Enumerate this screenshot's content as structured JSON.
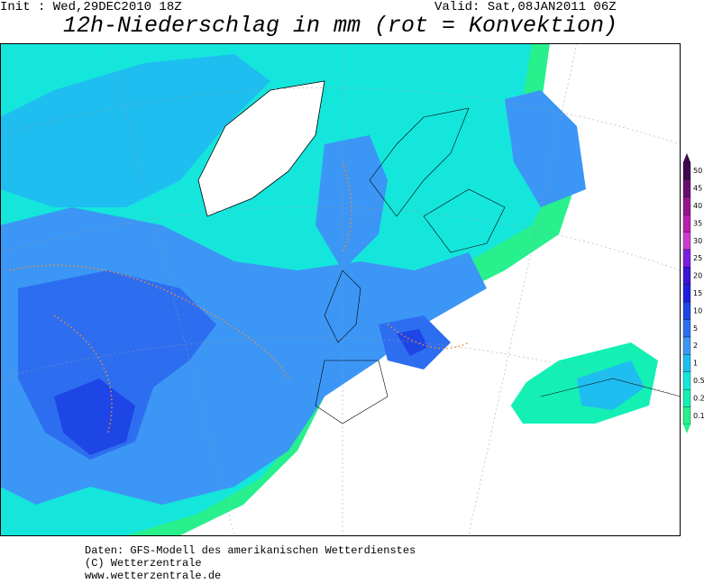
{
  "header": {
    "init": "Init : Wed,29DEC2010 18Z",
    "valid": "Valid: Sat,08JAN2011 06Z",
    "title": "12h-Niederschlag in mm (rot = Konvektion)"
  },
  "legend": [
    {
      "label": "50",
      "color": "#3c0a4c"
    },
    {
      "label": "45",
      "color": "#6a0f72"
    },
    {
      "label": "40",
      "color": "#96158e"
    },
    {
      "label": "35",
      "color": "#b81fae"
    },
    {
      "label": "30",
      "color": "#c83cd2"
    },
    {
      "label": "25",
      "color": "#7a1ee0"
    },
    {
      "label": "20",
      "color": "#3c14d2"
    },
    {
      "label": "15",
      "color": "#1e1edc"
    },
    {
      "label": "10",
      "color": "#1e46e6"
    },
    {
      "label": "5",
      "color": "#2d6ef0"
    },
    {
      "label": "2",
      "color": "#3c96f5"
    },
    {
      "label": "1",
      "color": "#1ebef0"
    },
    {
      "label": "0.5",
      "color": "#14e6dc"
    },
    {
      "label": "0.2",
      "color": "#14f0b4"
    },
    {
      "label": "0.1",
      "color": "#28f08c"
    }
  ],
  "footer": [
    "Daten: GFS-Modell des amerikanischen Wetterdienstes",
    "(C) Wetterzentrale",
    "www.wetterzentrale.de"
  ]
}
